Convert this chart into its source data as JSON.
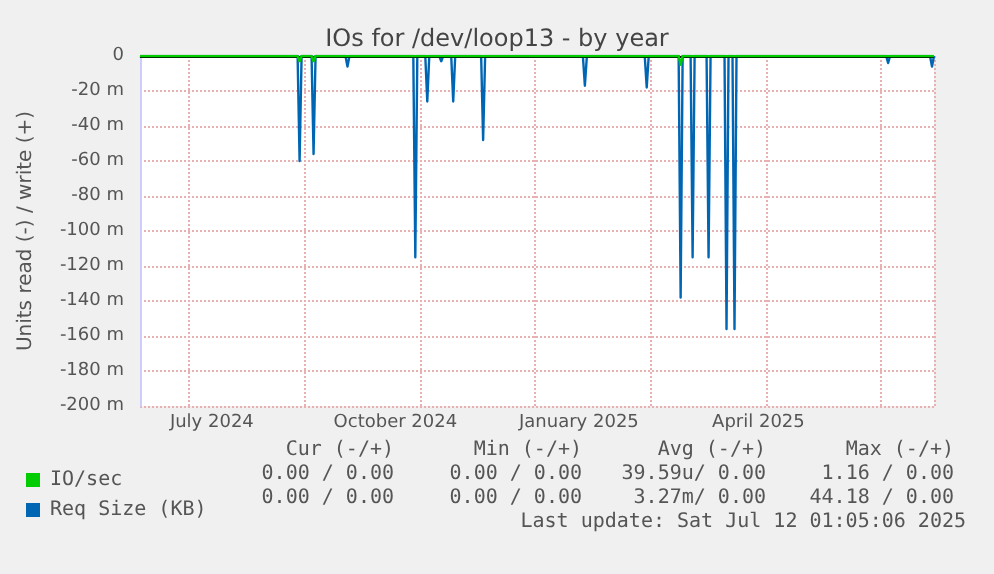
{
  "chart_data": {
    "type": "line",
    "title": "IOs for /dev/loop13 - by year",
    "ylabel": "Units read (-) / write (+)",
    "xlim": [
      "2024-06-09",
      "2025-07-12"
    ],
    "xticks": [
      {
        "value": "2024-07-15",
        "label": "July 2024"
      },
      {
        "value": "2024-10-15",
        "label": "October 2024"
      },
      {
        "value": "2025-01-15",
        "label": "January 2025"
      },
      {
        "value": "2025-04-15",
        "label": "April 2025"
      }
    ],
    "ylim": [
      -200,
      0
    ],
    "yticks": [
      0,
      {
        "value": -20,
        "label": "-20 m"
      },
      {
        "value": -40,
        "label": "-40 m"
      },
      {
        "value": -60,
        "label": "-60 m"
      },
      {
        "value": -80,
        "label": "-80 m"
      },
      {
        "value": -100,
        "label": "-100 m"
      },
      {
        "value": -120,
        "label": "-120 m"
      },
      {
        "value": -140,
        "label": "-140 m"
      },
      {
        "value": -160,
        "label": "-160 m"
      },
      {
        "value": -180,
        "label": "-180 m"
      },
      {
        "value": -200,
        "label": "-200 m"
      }
    ],
    "grid": true,
    "legend": "bottom left",
    "marker": "none",
    "line_style": "solid",
    "ref_lines": [
      {
        "axis": "y",
        "value": 0,
        "color": "#000000"
      }
    ],
    "series": [
      {
        "name": "IO/sec",
        "color": "#00cc00",
        "x": [
          "2024-06-09",
          "2024-08-27",
          "2024-08-28",
          "2024-08-29",
          "2024-09-03",
          "2024-09-04",
          "2024-09-05",
          "2025-03-06",
          "2025-03-07",
          "2025-03-08",
          "2025-07-12"
        ],
        "values": [
          0,
          0,
          -3,
          0,
          0,
          -3,
          0,
          0,
          -5,
          0,
          0
        ]
      },
      {
        "name": "Req Size (KB)",
        "color": "#0066b3",
        "x": [
          "2024-06-09",
          "2024-08-27",
          "2024-08-28",
          "2024-08-29",
          "2024-09-03",
          "2024-09-04",
          "2024-09-05",
          "2024-09-20",
          "2024-09-21",
          "2024-09-22",
          "2024-10-24",
          "2024-10-25",
          "2024-10-26",
          "2024-10-30",
          "2024-10-31",
          "2024-11-01",
          "2024-11-06",
          "2024-11-07",
          "2024-11-08",
          "2024-11-12",
          "2024-11-13",
          "2024-11-14",
          "2024-11-27",
          "2024-11-28",
          "2024-11-29",
          "2025-01-17",
          "2025-01-18",
          "2025-01-19",
          "2025-02-17",
          "2025-02-18",
          "2025-02-19",
          "2025-03-06",
          "2025-03-07",
          "2025-03-08",
          "2025-03-12",
          "2025-03-13",
          "2025-03-14",
          "2025-03-20",
          "2025-03-21",
          "2025-03-22",
          "2025-03-29",
          "2025-03-30",
          "2025-03-31",
          "2025-04-02",
          "2025-04-03",
          "2025-04-04",
          "2025-06-18",
          "2025-06-19",
          "2025-06-20",
          "2025-07-10",
          "2025-07-11",
          "2025-07-12"
        ],
        "values": [
          0,
          0,
          -60,
          0,
          0,
          -56,
          0,
          0,
          -6,
          0,
          0,
          -115,
          0,
          0,
          -26,
          0,
          0,
          -3,
          0,
          0,
          -26,
          0,
          0,
          -48,
          0,
          0,
          -17,
          0,
          0,
          -18,
          0,
          0,
          -138,
          0,
          0,
          -115,
          0,
          0,
          -115,
          0,
          0,
          -156,
          0,
          0,
          -156,
          0,
          0,
          -4,
          0,
          0,
          -6,
          0
        ]
      }
    ],
    "annotations": [
      "Cur (-/+)",
      "Min (-/+)",
      "Avg (-/+)",
      "Max (-/+)",
      "0.00 / 0.00",
      "0.00 / 0.00",
      "39.59u/ 0.00",
      "1.16 / 0.00",
      "0.00 / 0.00",
      "0.00 / 0.00",
      "3.27m/ 0.00",
      "44.18 / 0.00",
      "Last update: Sat Jul 12 01:05:06 2025"
    ]
  }
}
